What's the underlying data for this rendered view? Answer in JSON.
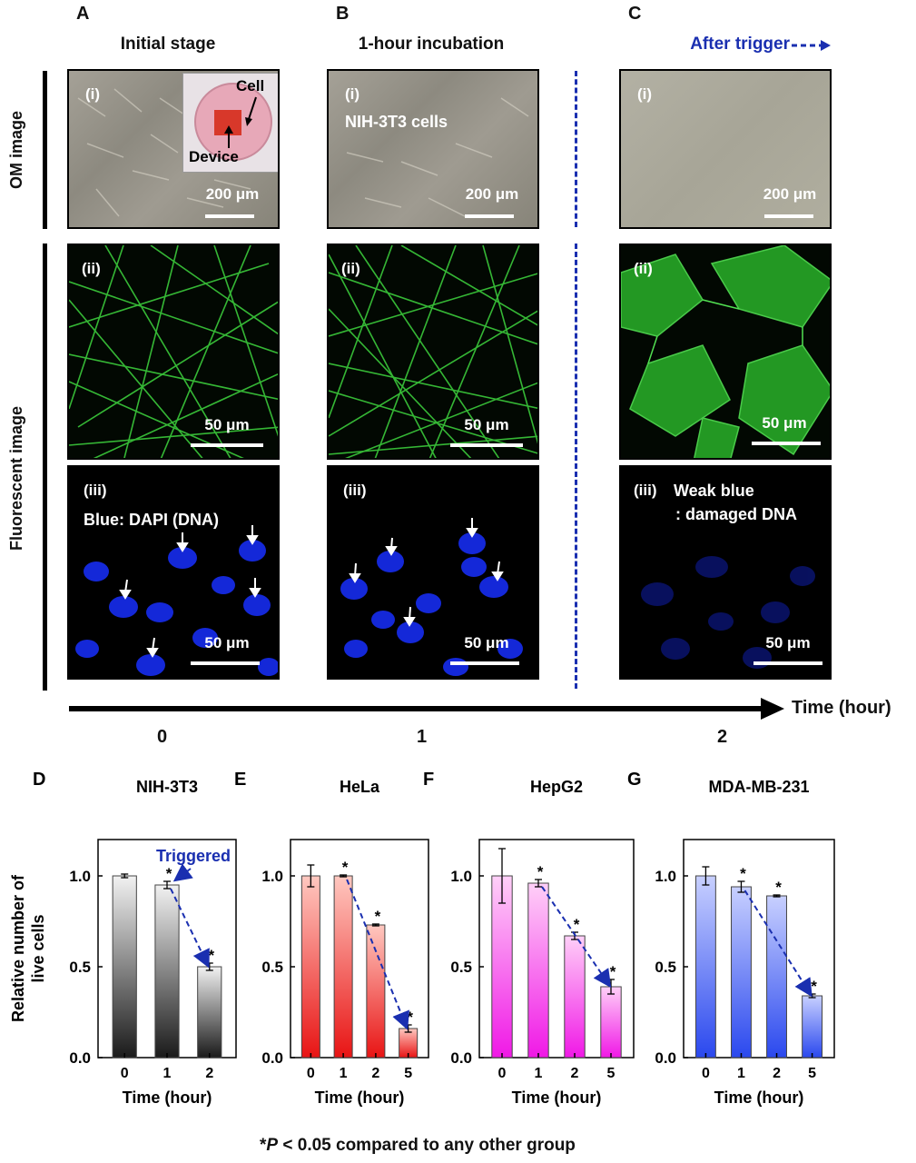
{
  "columns": [
    {
      "letter": "A",
      "title": "Initial stage"
    },
    {
      "letter": "B",
      "title": "1-hour incubation"
    },
    {
      "letter": "C",
      "title": "After trigger"
    }
  ],
  "rows": {
    "om": "OM image",
    "fluor": "Fluorescent image"
  },
  "om_panels": {
    "a": {
      "roman": "(i)",
      "scale": "200 μm",
      "inset_cell": "Cell",
      "inset_device": "Device"
    },
    "b": {
      "roman": "(i)",
      "text": "NIH-3T3 cells",
      "scale": "200 μm"
    },
    "c": {
      "roman": "(i)",
      "scale": "200 μm"
    }
  },
  "fluor_panels": {
    "a": {
      "roman": "(ii)",
      "scale": "50 μm"
    },
    "b": {
      "roman": "(ii)",
      "scale": "50 μm"
    },
    "c": {
      "roman": "(ii)",
      "scale": "50 μm"
    }
  },
  "dapi_panels": {
    "a": {
      "roman": "(iii)",
      "text": "Blue: DAPI (DNA)",
      "scale": "50 μm"
    },
    "b": {
      "roman": "(iii)",
      "scale": "50 μm"
    },
    "c": {
      "roman": "(iii)",
      "text1": "Weak blue",
      "text2": ": damaged DNA",
      "scale": "50 μm"
    }
  },
  "timeline": {
    "label": "Time (hour)",
    "ticks": [
      "0",
      "1",
      "2"
    ]
  },
  "colors": {
    "trigger": "#1a2fb0",
    "green": "#3fd63f",
    "blue": "#1428d8"
  },
  "chart_data": [
    {
      "letter": "D",
      "type": "bar",
      "title": "NIH-3T3",
      "categories": [
        "0",
        "1",
        "2"
      ],
      "values": [
        1.0,
        0.95,
        0.5
      ],
      "errors": [
        0.01,
        0.02,
        0.02
      ],
      "sig": [
        false,
        true,
        true
      ],
      "xlabel": "Time (hour)",
      "ylabel": "Relative number of live cells",
      "ylim": [
        0,
        1.2
      ],
      "yticks": [
        "0.0",
        "0.5",
        "1.0"
      ],
      "annotation": "Triggered",
      "gradient": [
        "#f2f2f2",
        "#1a1a1a"
      ]
    },
    {
      "letter": "E",
      "type": "bar",
      "title": "HeLa",
      "categories": [
        "0",
        "1",
        "2",
        "5"
      ],
      "values": [
        1.0,
        1.0,
        0.73,
        0.16
      ],
      "errors": [
        0.06,
        0.005,
        0.005,
        0.02
      ],
      "sig": [
        false,
        true,
        true,
        true
      ],
      "xlabel": "Time (hour)",
      "ylim": [
        0,
        1.2
      ],
      "yticks": [
        "0.0",
        "0.5",
        "1.0"
      ],
      "gradient": [
        "#ffc8c0",
        "#e81414"
      ]
    },
    {
      "letter": "F",
      "type": "bar",
      "title": "HepG2",
      "categories": [
        "0",
        "1",
        "2",
        "5"
      ],
      "values": [
        1.0,
        0.96,
        0.67,
        0.39
      ],
      "errors": [
        0.15,
        0.02,
        0.02,
        0.04
      ],
      "sig": [
        false,
        true,
        true,
        true
      ],
      "xlabel": "Time (hour)",
      "ylim": [
        0,
        1.2
      ],
      "yticks": [
        "0.0",
        "0.5",
        "1.0"
      ],
      "gradient": [
        "#ffd0f8",
        "#f018e6"
      ]
    },
    {
      "letter": "G",
      "type": "bar",
      "title": "MDA-MB-231",
      "categories": [
        "0",
        "1",
        "2",
        "5"
      ],
      "values": [
        1.0,
        0.94,
        0.89,
        0.34
      ],
      "errors": [
        0.05,
        0.03,
        0.005,
        0.01
      ],
      "sig": [
        false,
        true,
        true,
        true
      ],
      "xlabel": "Time (hour)",
      "ylim": [
        0,
        1.2
      ],
      "yticks": [
        "0.0",
        "0.5",
        "1.0"
      ],
      "gradient": [
        "#c8d0ff",
        "#2a48ee"
      ]
    }
  ],
  "footnote": {
    "prefix": "*",
    "p": "P",
    "rest": " < 0.05 compared to any other group"
  }
}
